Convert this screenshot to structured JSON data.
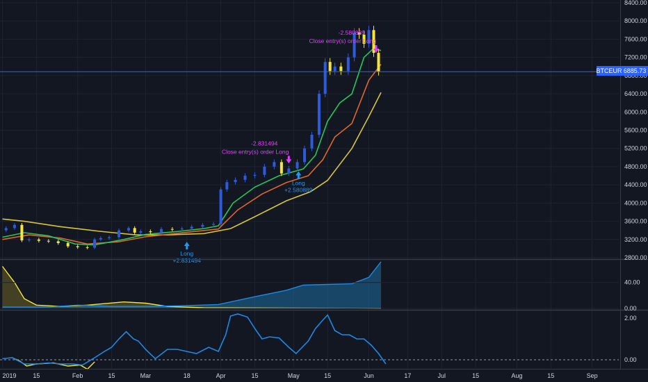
{
  "symbol": "BTCEUR",
  "last_price": "6885.73",
  "colors": {
    "background": "#131722",
    "grid": "#1e2330",
    "axis_text": "#d1d4dc",
    "candle_up": "#2e5bd9",
    "candle_down": "#f5e63d",
    "ma_fast": "#26c75a",
    "ma_mid": "#e0662a",
    "ma_slow": "#d8c43a",
    "price_line": "#2962ff",
    "osc_blue": "#1e88e5",
    "osc_yellow": "#f5e63d",
    "long_marker": "#2196f3",
    "close_marker": "#e040fb"
  },
  "chart_data": [
    {
      "type": "candlestick",
      "x_axis": {
        "ticks": [
          "2019",
          "15",
          "Feb",
          "15",
          "Mar",
          "18",
          "Apr",
          "15",
          "May",
          "15",
          "Jun",
          "17",
          "Jul",
          "15",
          "Aug",
          "15",
          "Sep"
        ],
        "tick_dates": [
          "2019-01-01",
          "2019-01-15",
          "2019-02-01",
          "2019-02-15",
          "2019-03-01",
          "2019-03-18",
          "2019-04-01",
          "2019-04-15",
          "2019-05-01",
          "2019-05-15",
          "2019-06-01",
          "2019-06-17",
          "2019-07-01",
          "2019-07-15",
          "2019-08-01",
          "2019-08-15",
          "2019-09-01"
        ],
        "range": [
          "2018-12-31",
          "2019-09-12"
        ]
      },
      "y_axis": {
        "range": [
          2800,
          8400
        ],
        "ticks": [
          "8400.00",
          "8000.00",
          "7600.00",
          "7200.00",
          "6800.00",
          "6400.00",
          "6000.00",
          "5600.00",
          "5200.00",
          "4800.00",
          "4400.00",
          "4000.00",
          "3600.00",
          "3200.00",
          "2800.00"
        ],
        "tick_values": [
          8400,
          8000,
          7600,
          7200,
          6800,
          6400,
          6000,
          5600,
          5200,
          4800,
          4400,
          4000,
          3600,
          3200,
          2800
        ]
      },
      "price_line": 6885.73,
      "close_series": [
        [
          "2019-01-01",
          3400
        ],
        [
          "2019-01-04",
          3450
        ],
        [
          "2019-01-08",
          3520
        ],
        [
          "2019-01-10",
          3180
        ],
        [
          "2019-01-14",
          3200
        ],
        [
          "2019-01-18",
          3170
        ],
        [
          "2019-01-22",
          3160
        ],
        [
          "2019-01-26",
          3120
        ],
        [
          "2019-01-30",
          3050
        ],
        [
          "2019-02-03",
          3030
        ],
        [
          "2019-02-07",
          3020
        ],
        [
          "2019-02-09",
          3200
        ],
        [
          "2019-02-12",
          3230
        ],
        [
          "2019-02-16",
          3250
        ],
        [
          "2019-02-20",
          3400
        ],
        [
          "2019-02-24",
          3450
        ],
        [
          "2019-02-25",
          3350
        ],
        [
          "2019-03-01",
          3380
        ],
        [
          "2019-03-05",
          3360
        ],
        [
          "2019-03-10",
          3430
        ],
        [
          "2019-03-14",
          3420
        ],
        [
          "2019-03-18",
          3440
        ],
        [
          "2019-03-22",
          3480
        ],
        [
          "2019-03-27",
          3520
        ],
        [
          "2019-03-31",
          3540
        ],
        [
          "2019-04-02",
          4300
        ],
        [
          "2019-04-05",
          4460
        ],
        [
          "2019-04-09",
          4510
        ],
        [
          "2019-04-13",
          4600
        ],
        [
          "2019-04-17",
          4620
        ],
        [
          "2019-04-21",
          4800
        ],
        [
          "2019-04-25",
          4900
        ],
        [
          "2019-04-27",
          4650
        ],
        [
          "2019-05-01",
          4760
        ],
        [
          "2019-05-04",
          4900
        ],
        [
          "2019-05-07",
          5200
        ],
        [
          "2019-05-10",
          5500
        ],
        [
          "2019-05-13",
          6400
        ],
        [
          "2019-05-15",
          7100
        ],
        [
          "2019-05-17",
          6900
        ],
        [
          "2019-05-19",
          7000
        ],
        [
          "2019-05-22",
          6900
        ],
        [
          "2019-05-25",
          7200
        ],
        [
          "2019-05-27",
          7750
        ],
        [
          "2019-05-29",
          7700
        ],
        [
          "2019-05-31",
          7500
        ],
        [
          "2019-06-02",
          7800
        ],
        [
          "2019-06-04",
          7300
        ],
        [
          "2019-06-06",
          6885.73
        ]
      ],
      "ma_fast": [
        [
          "2019-01-01",
          3250
        ],
        [
          "2019-01-10",
          3350
        ],
        [
          "2019-01-20",
          3280
        ],
        [
          "2019-01-31",
          3100
        ],
        [
          "2019-02-08",
          3080
        ],
        [
          "2019-02-20",
          3200
        ],
        [
          "2019-03-01",
          3310
        ],
        [
          "2019-03-15",
          3380
        ],
        [
          "2019-03-25",
          3440
        ],
        [
          "2019-03-31",
          3500
        ],
        [
          "2019-04-06",
          4000
        ],
        [
          "2019-04-15",
          4350
        ],
        [
          "2019-04-25",
          4600
        ],
        [
          "2019-05-05",
          4750
        ],
        [
          "2019-05-10",
          5050
        ],
        [
          "2019-05-15",
          5800
        ],
        [
          "2019-05-20",
          6200
        ],
        [
          "2019-05-25",
          6400
        ],
        [
          "2019-05-30",
          7200
        ],
        [
          "2019-06-03",
          7400
        ],
        [
          "2019-06-06",
          7350
        ]
      ],
      "ma_mid": [
        [
          "2019-01-01",
          3200
        ],
        [
          "2019-01-12",
          3300
        ],
        [
          "2019-01-25",
          3230
        ],
        [
          "2019-02-05",
          3100
        ],
        [
          "2019-02-18",
          3150
        ],
        [
          "2019-03-01",
          3260
        ],
        [
          "2019-03-15",
          3340
        ],
        [
          "2019-03-31",
          3430
        ],
        [
          "2019-04-08",
          3850
        ],
        [
          "2019-04-18",
          4200
        ],
        [
          "2019-04-28",
          4450
        ],
        [
          "2019-05-07",
          4600
        ],
        [
          "2019-05-13",
          4950
        ],
        [
          "2019-05-18",
          5450
        ],
        [
          "2019-05-25",
          5750
        ],
        [
          "2019-06-01",
          6700
        ],
        [
          "2019-06-06",
          7050
        ]
      ],
      "ma_slow": [
        [
          "2019-01-01",
          3650
        ],
        [
          "2019-01-10",
          3600
        ],
        [
          "2019-01-25",
          3480
        ],
        [
          "2019-02-10",
          3380
        ],
        [
          "2019-02-25",
          3300
        ],
        [
          "2019-03-10",
          3300
        ],
        [
          "2019-03-25",
          3330
        ],
        [
          "2019-04-05",
          3440
        ],
        [
          "2019-04-15",
          3700
        ],
        [
          "2019-04-28",
          4050
        ],
        [
          "2019-05-08",
          4250
        ],
        [
          "2019-05-15",
          4500
        ],
        [
          "2019-05-25",
          5200
        ],
        [
          "2019-06-01",
          5900
        ],
        [
          "2019-06-06",
          6430
        ]
      ],
      "annotations": [
        {
          "kind": "long",
          "date": "2019-03-18",
          "price": 3150,
          "label": "Long",
          "value": "+2.831494"
        },
        {
          "kind": "close",
          "date": "2019-04-29",
          "price": 4870,
          "label": "Close entry(s) order Long",
          "value": "-2.831494"
        },
        {
          "kind": "long",
          "date": "2019-05-03",
          "price": 4700,
          "label": "Long",
          "value": "+2.580889"
        },
        {
          "kind": "close",
          "date": "2019-06-04",
          "price": 7300,
          "label": "Close entry(s) order Long",
          "value": "-2.580889"
        }
      ]
    },
    {
      "type": "area",
      "y_axis": {
        "range": [
          0,
          73
        ],
        "ticks": [
          "40.00",
          "0.00"
        ],
        "tick_values": [
          40,
          0
        ]
      },
      "series": [
        {
          "values": [
            [
              "2019-01-01",
              2
            ],
            [
              "2019-01-20",
              2
            ],
            [
              "2019-02-01",
              5
            ],
            [
              "2019-02-15",
              3
            ],
            [
              "2019-03-01",
              3
            ],
            [
              "2019-03-15",
              4
            ],
            [
              "2019-03-31",
              6
            ],
            [
              "2019-04-15",
              18
            ],
            [
              "2019-04-28",
              28
            ],
            [
              "2019-05-05",
              36
            ],
            [
              "2019-05-15",
              37
            ],
            [
              "2019-05-25",
              38
            ],
            [
              "2019-06-01",
              48
            ],
            [
              "2019-06-06",
              72
            ]
          ]
        },
        {
          "values": [
            [
              "2019-01-01",
              65
            ],
            [
              "2019-01-06",
              40
            ],
            [
              "2019-01-10",
              15
            ],
            [
              "2019-01-15",
              5
            ],
            [
              "2019-01-25",
              3
            ],
            [
              "2019-02-05",
              5
            ],
            [
              "2019-02-20",
              10
            ],
            [
              "2019-03-01",
              8
            ],
            [
              "2019-03-10",
              3
            ],
            [
              "2019-03-25",
              1
            ],
            [
              "2019-06-06",
              0
            ]
          ]
        }
      ]
    },
    {
      "type": "line",
      "y_axis": {
        "range": [
          -0.3,
          2.3
        ],
        "ticks": [
          "2.00",
          "0.00"
        ],
        "tick_values": [
          2,
          0
        ]
      },
      "series": [
        {
          "values": [
            [
              "2019-01-01",
              0.05
            ],
            [
              "2019-01-05",
              0.1
            ],
            [
              "2019-01-10",
              -0.2
            ],
            [
              "2019-01-15",
              -0.2
            ],
            [
              "2019-01-20",
              -0.15
            ],
            [
              "2019-01-25",
              -0.2
            ],
            [
              "2019-01-30",
              -0.2
            ],
            [
              "2019-02-03",
              -0.25
            ],
            [
              "2019-02-08",
              0.1
            ],
            [
              "2019-02-12",
              0.4
            ],
            [
              "2019-02-15",
              0.6
            ],
            [
              "2019-02-18",
              1.0
            ],
            [
              "2019-02-21",
              1.35
            ],
            [
              "2019-02-24",
              1.0
            ],
            [
              "2019-02-26",
              0.9
            ],
            [
              "2019-03-01",
              0.5
            ],
            [
              "2019-03-05",
              0.05
            ],
            [
              "2019-03-10",
              0.5
            ],
            [
              "2019-03-14",
              0.5
            ],
            [
              "2019-03-18",
              0.4
            ],
            [
              "2019-03-22",
              0.3
            ],
            [
              "2019-03-27",
              0.6
            ],
            [
              "2019-03-31",
              0.4
            ],
            [
              "2019-04-03",
              1.2
            ],
            [
              "2019-04-05",
              2.1
            ],
            [
              "2019-04-08",
              2.2
            ],
            [
              "2019-04-12",
              2.05
            ],
            [
              "2019-04-15",
              1.5
            ],
            [
              "2019-04-18",
              1.0
            ],
            [
              "2019-04-21",
              1.1
            ],
            [
              "2019-04-25",
              1.05
            ],
            [
              "2019-04-29",
              0.6
            ],
            [
              "2019-05-02",
              0.3
            ],
            [
              "2019-05-07",
              0.9
            ],
            [
              "2019-05-10",
              1.5
            ],
            [
              "2019-05-13",
              1.9
            ],
            [
              "2019-05-15",
              2.15
            ],
            [
              "2019-05-18",
              1.4
            ],
            [
              "2019-05-21",
              1.2
            ],
            [
              "2019-05-24",
              1.2
            ],
            [
              "2019-05-27",
              1.0
            ],
            [
              "2019-05-30",
              1.0
            ],
            [
              "2019-06-02",
              0.7
            ],
            [
              "2019-06-05",
              0.3
            ],
            [
              "2019-06-08",
              -0.2
            ]
          ]
        },
        {
          "values": [
            [
              "2019-01-05",
              0.1
            ],
            [
              "2019-01-08",
              -0.05
            ],
            [
              "2019-01-11",
              -0.3
            ],
            [
              "2019-01-15",
              -0.2
            ],
            [
              "2019-01-22",
              -0.15
            ],
            [
              "2019-01-28",
              -0.3
            ],
            [
              "2019-02-02",
              -0.25
            ],
            [
              "2019-02-05",
              -0.45
            ],
            [
              "2019-02-08",
              -0.1
            ]
          ]
        }
      ],
      "reference_line": 0
    }
  ]
}
